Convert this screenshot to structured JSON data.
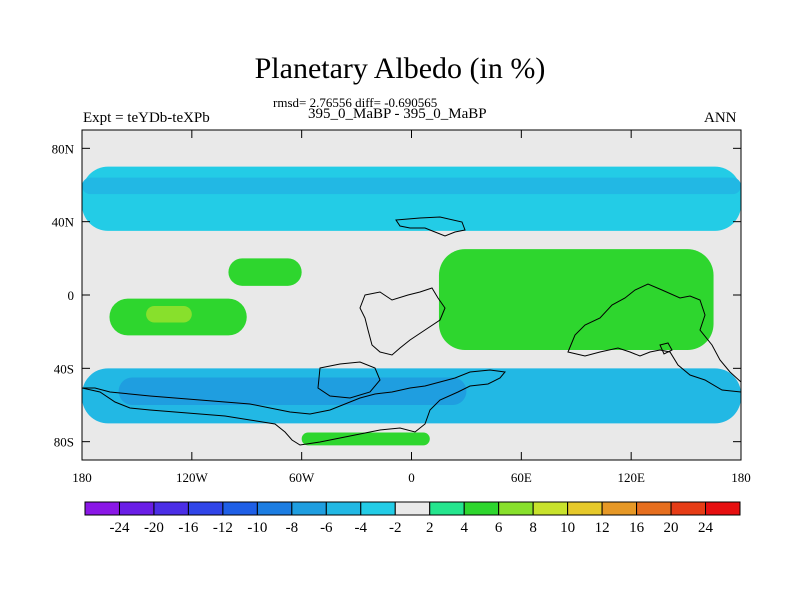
{
  "header": {
    "title": "Planetary Albedo (in %)",
    "stats": "rmsd= 2.76556 diff= -0.690565",
    "experiment": "Expt = teYDb-teXPb",
    "case": "395_0_MaBP - 395_0_MaBP",
    "season": "ANN"
  },
  "colors": {
    "background": "#e9e9e9",
    "outline": "#000000"
  },
  "chart_data": {
    "type": "heatmap",
    "title": "Planetary Albedo (in %)",
    "xlim": [
      -180,
      180
    ],
    "ylim": [
      -90,
      90
    ],
    "x_ticks": [
      {
        "value": -180,
        "label": "180"
      },
      {
        "value": -120,
        "label": "120W"
      },
      {
        "value": -60,
        "label": "60W"
      },
      {
        "value": 0,
        "label": "0"
      },
      {
        "value": 60,
        "label": "60E"
      },
      {
        "value": 120,
        "label": "120E"
      },
      {
        "value": 180,
        "label": "180"
      }
    ],
    "y_ticks": [
      {
        "value": 80,
        "label": "80N"
      },
      {
        "value": 40,
        "label": "40N"
      },
      {
        "value": 0,
        "label": "0"
      },
      {
        "value": -40,
        "label": "40S"
      },
      {
        "value": -80,
        "label": "80S"
      }
    ],
    "colorbar": {
      "levels": [
        -24,
        -20,
        -16,
        -12,
        -10,
        -8,
        -6,
        -4,
        -2,
        2,
        4,
        6,
        8,
        10,
        12,
        16,
        20,
        24
      ],
      "colors": [
        "#8a17e6",
        "#6a1ee6",
        "#4b2ee6",
        "#3045e8",
        "#1f5fe6",
        "#1c7de2",
        "#1f9ee0",
        "#22b8e4",
        "#23cce6",
        "#e9e9e9",
        "#25e58e",
        "#2ed62e",
        "#88e02c",
        "#c8e22c",
        "#e6c92a",
        "#e69826",
        "#e66e1e",
        "#e63c16",
        "#e60f10"
      ]
    },
    "regions": [
      {
        "label": "northern mid-latitude band",
        "value": -4,
        "lon": [
          -180,
          180
        ],
        "lat": [
          35,
          70
        ]
      },
      {
        "label": "northern mid-latitude band core",
        "value": -6,
        "lon": [
          -180,
          180
        ],
        "lat": [
          55,
          64
        ]
      },
      {
        "label": "southern ocean band",
        "value": -6,
        "lon": [
          -180,
          180
        ],
        "lat": [
          -70,
          -40
        ]
      },
      {
        "label": "southern ocean band core",
        "value": -8,
        "lon": [
          -160,
          30
        ],
        "lat": [
          -60,
          -45
        ]
      },
      {
        "label": "tropical south pacific",
        "value": 4,
        "lon": [
          -165,
          -90
        ],
        "lat": [
          -22,
          -2
        ]
      },
      {
        "label": "tropical south pacific peak",
        "value": 6,
        "lon": [
          -145,
          -120
        ],
        "lat": [
          -15,
          -6
        ]
      },
      {
        "label": "north african / arabian band",
        "value": 4,
        "lon": [
          15,
          165
        ],
        "lat": [
          -30,
          25
        ]
      },
      {
        "label": "equatorial pacific",
        "value": 4,
        "lon": [
          -100,
          -60
        ],
        "lat": [
          5,
          20
        ]
      },
      {
        "label": "antarctic coastal",
        "value": 4,
        "lon": [
          -60,
          10
        ],
        "lat": [
          -82,
          -75
        ]
      }
    ]
  }
}
